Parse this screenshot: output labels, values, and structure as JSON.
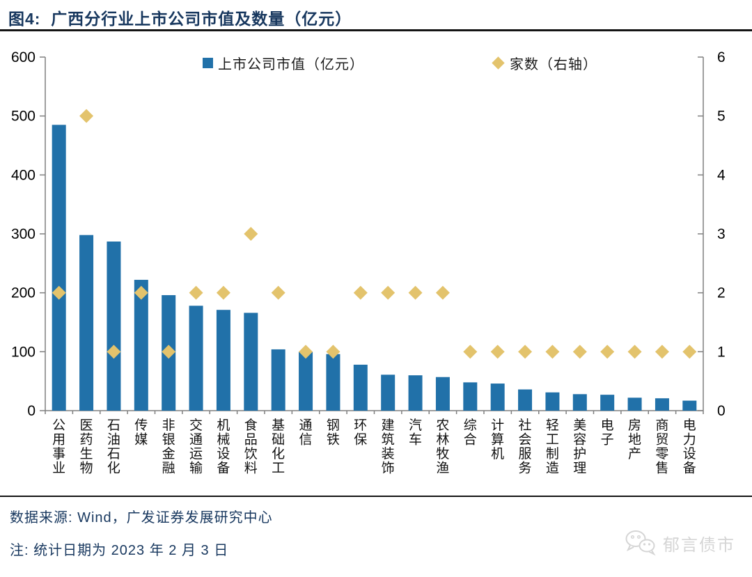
{
  "header": {
    "title": "图4:  广西分行业上市公司市值及数量（亿元）"
  },
  "legend": {
    "bar_label": "上市公司市值（亿元）",
    "diamond_label": "家数（右轴）"
  },
  "chart_data": {
    "type": "bar",
    "title": "广西分行业上市公司市值及数量（亿元）",
    "categories": [
      "公用事业",
      "医药生物",
      "石油石化",
      "传媒",
      "非银金融",
      "交通运输",
      "机械设备",
      "食品饮料",
      "基础化工",
      "通信",
      "钢铁",
      "环保",
      "建筑装饰",
      "汽车",
      "农林牧渔",
      "综合",
      "计算机",
      "社会服务",
      "轻工制造",
      "美容护理",
      "电子",
      "房地产",
      "商贸零售",
      "电力设备"
    ],
    "series": [
      {
        "name": "上市公司市值（亿元）",
        "type": "bar",
        "axis": "left",
        "values": [
          485,
          298,
          287,
          222,
          196,
          178,
          171,
          166,
          104,
          100,
          96,
          78,
          61,
          60,
          57,
          48,
          46,
          36,
          31,
          28,
          27,
          22,
          21,
          17
        ]
      },
      {
        "name": "家数（右轴）",
        "type": "scatter",
        "marker": "diamond",
        "axis": "right",
        "values": [
          2,
          5,
          1,
          2,
          1,
          2,
          2,
          3,
          2,
          1,
          1,
          2,
          2,
          2,
          2,
          1,
          1,
          1,
          1,
          1,
          1,
          1,
          1,
          1
        ]
      }
    ],
    "left_axis": {
      "min": 0,
      "max": 600,
      "step": 100,
      "ticks": [
        0,
        100,
        200,
        300,
        400,
        500,
        600
      ]
    },
    "right_axis": {
      "min": 0,
      "max": 6,
      "step": 1,
      "ticks": [
        0,
        1,
        2,
        3,
        4,
        5,
        6
      ]
    },
    "legend_position": "top",
    "grid": false,
    "colors": {
      "bar": "#2171A9",
      "diamond": "#E3C36C",
      "axis": "#7F7F7F",
      "tick_label": "#000000",
      "category_label": "#111111"
    }
  },
  "footer": {
    "source": "数据来源: Wind，广发证券发展研究中心",
    "note": "注: 统计日期为 2023 年 2 月 3 日",
    "watermark_text": "郁言债市"
  }
}
